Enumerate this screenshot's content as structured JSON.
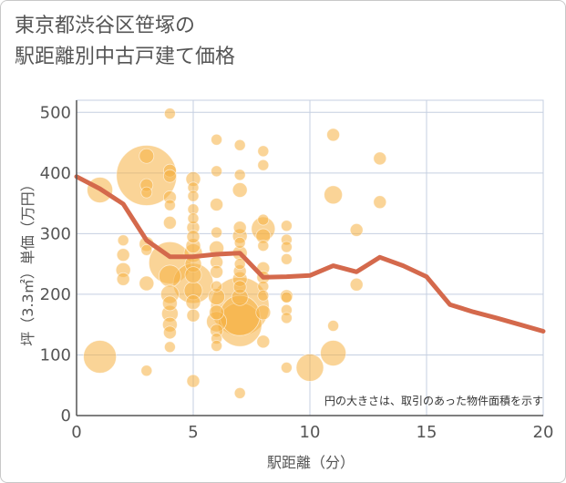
{
  "chart_data": {
    "type": "scatter",
    "title": "東京都渋谷区笹塚の\n駅距離別中古戸建て価格",
    "xlabel": "駅距離（分）",
    "ylabel": "坪（3.3㎡）単価（万円）",
    "note": "円の大きさは、取引のあった物件面積を示す",
    "xlim": [
      0,
      20
    ],
    "ylim": [
      0,
      520
    ],
    "xticks": [
      "0",
      "5",
      "10",
      "15",
      "20"
    ],
    "yticks": [
      "0",
      "100",
      "200",
      "300",
      "400",
      "500"
    ],
    "grid": true,
    "colors": {
      "bubble": "#f5b041",
      "line": "#d4694c",
      "grid": "#c5cfe0",
      "axis": "#555555"
    },
    "series": [
      {
        "kind": "bubble",
        "points": [
          [
            1,
            97,
            18
          ],
          [
            1,
            372,
            14
          ],
          [
            2,
            289,
            6
          ],
          [
            2,
            265,
            7
          ],
          [
            2,
            240,
            8
          ],
          [
            2,
            225,
            7
          ],
          [
            3,
            396,
            33
          ],
          [
            3,
            428,
            8
          ],
          [
            3,
            380,
            7
          ],
          [
            3,
            368,
            6
          ],
          [
            3,
            283,
            8
          ],
          [
            3,
            273,
            6
          ],
          [
            3,
            218,
            8
          ],
          [
            3,
            74,
            6
          ],
          [
            4,
            498,
            6
          ],
          [
            4,
            404,
            7
          ],
          [
            4,
            395,
            7
          ],
          [
            4,
            360,
            7
          ],
          [
            4,
            347,
            6
          ],
          [
            4,
            318,
            7
          ],
          [
            4,
            252,
            23
          ],
          [
            4,
            230,
            12
          ],
          [
            4,
            200,
            10
          ],
          [
            4,
            185,
            8
          ],
          [
            4,
            168,
            9
          ],
          [
            4,
            150,
            8
          ],
          [
            4,
            137,
            7
          ],
          [
            4,
            113,
            6
          ],
          [
            5,
            390,
            8
          ],
          [
            5,
            376,
            6
          ],
          [
            5,
            362,
            6
          ],
          [
            5,
            340,
            6
          ],
          [
            5,
            325,
            6
          ],
          [
            5,
            310,
            7
          ],
          [
            5,
            295,
            7
          ],
          [
            5,
            280,
            8
          ],
          [
            5,
            268,
            10
          ],
          [
            5,
            250,
            9
          ],
          [
            5,
            232,
            9
          ],
          [
            5,
            218,
            22
          ],
          [
            5,
            206,
            10
          ],
          [
            5,
            187,
            8
          ],
          [
            5,
            165,
            7
          ],
          [
            5,
            57,
            7
          ],
          [
            6,
            455,
            6
          ],
          [
            6,
            403,
            6
          ],
          [
            6,
            348,
            7
          ],
          [
            6,
            302,
            6
          ],
          [
            6,
            276,
            8
          ],
          [
            6,
            253,
            7
          ],
          [
            6,
            237,
            7
          ],
          [
            6,
            213,
            6
          ],
          [
            6,
            196,
            9
          ],
          [
            6,
            170,
            8
          ],
          [
            6,
            155,
            11
          ],
          [
            6,
            140,
            7
          ],
          [
            6,
            127,
            6
          ],
          [
            6,
            115,
            6
          ],
          [
            7,
            446,
            6
          ],
          [
            7,
            397,
            6
          ],
          [
            7,
            372,
            8
          ],
          [
            7,
            310,
            7
          ],
          [
            7,
            296,
            8
          ],
          [
            7,
            285,
            6
          ],
          [
            7,
            268,
            8
          ],
          [
            7,
            250,
            6
          ],
          [
            7,
            238,
            7
          ],
          [
            7,
            225,
            8
          ],
          [
            7,
            212,
            7
          ],
          [
            7,
            195,
            9
          ],
          [
            7,
            180,
            32
          ],
          [
            7,
            165,
            22
          ],
          [
            7,
            150,
            24
          ],
          [
            7,
            37,
            6
          ],
          [
            8,
            436,
            6
          ],
          [
            8,
            413,
            6
          ],
          [
            8,
            323,
            6
          ],
          [
            8,
            308,
            13
          ],
          [
            8,
            296,
            8
          ],
          [
            8,
            280,
            6
          ],
          [
            8,
            243,
            7
          ],
          [
            8,
            228,
            7
          ],
          [
            8,
            213,
            6
          ],
          [
            8,
            198,
            6
          ],
          [
            8,
            170,
            8
          ],
          [
            8,
            122,
            7
          ],
          [
            9,
            313,
            6
          ],
          [
            9,
            290,
            6
          ],
          [
            9,
            278,
            6
          ],
          [
            9,
            258,
            6
          ],
          [
            9,
            197,
            7
          ],
          [
            9,
            195,
            6
          ],
          [
            9,
            174,
            6
          ],
          [
            9,
            161,
            6
          ],
          [
            9,
            79,
            6
          ],
          [
            10,
            79,
            15
          ],
          [
            11,
            463,
            7
          ],
          [
            11,
            364,
            10
          ],
          [
            11,
            148,
            6
          ],
          [
            11,
            103,
            14
          ],
          [
            12,
            306,
            7
          ],
          [
            12,
            216,
            7
          ],
          [
            13,
            424,
            7
          ],
          [
            13,
            352,
            7
          ]
        ]
      },
      {
        "kind": "line",
        "x": [
          0,
          1,
          2,
          3,
          4,
          5,
          6,
          7,
          8,
          9,
          10,
          11,
          12,
          13,
          14,
          15,
          16,
          17,
          18,
          19,
          20
        ],
        "y": [
          394,
          374,
          349,
          289,
          262,
          262,
          266,
          268,
          228,
          229,
          231,
          247,
          237,
          261,
          247,
          229,
          183,
          171,
          161,
          150,
          139
        ]
      }
    ]
  }
}
